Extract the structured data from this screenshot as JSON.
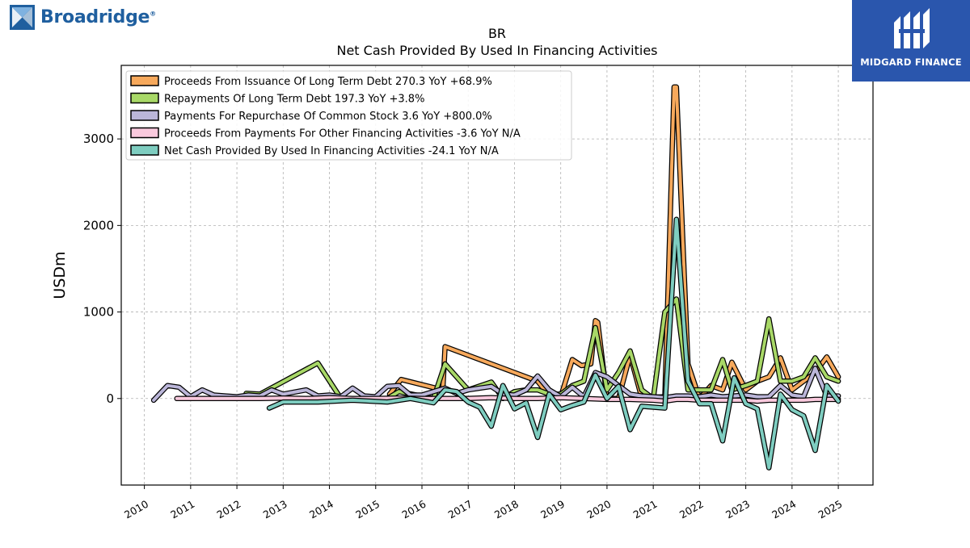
{
  "branding": {
    "left_logo_text": "Broadridge",
    "left_logo_reg": "®",
    "right_logo_text": "MIDGARD FINANCE",
    "left_logo_color": "#1f5f9f",
    "right_logo_bg": "#2a56ad"
  },
  "chart_data": {
    "type": "line",
    "title": "BR",
    "subtitle": "Net Cash Provided By Used In Financing Activities",
    "ylabel": "USDm",
    "xlabel": "",
    "xlim": [
      2009.5,
      2025.75
    ],
    "ylim": [
      -1000,
      3850
    ],
    "yticks": [
      0,
      1000,
      2000,
      3000
    ],
    "xticks": [
      "2010",
      "2011",
      "2012",
      "2013",
      "2014",
      "2015",
      "2016",
      "2017",
      "2018",
      "2019",
      "2020",
      "2021",
      "2022",
      "2023",
      "2024",
      "2025"
    ],
    "grid": true,
    "legend_position": "top-left",
    "series": [
      {
        "name": "Proceeds From Issuance Of Long Term Debt  270.3 YoY +68.9%",
        "color": "#f7a95c",
        "x": [
          2015.3,
          2015.55,
          2016.45,
          2016.5,
          2018.5,
          2018.75,
          2019.0,
          2019.25,
          2019.45,
          2019.65,
          2019.75,
          2019.8,
          2020.0,
          2020.25,
          2020.5,
          2020.75,
          2021.25,
          2021.45,
          2021.5,
          2021.75,
          2022.0,
          2022.25,
          2022.5,
          2022.7,
          2023.0,
          2023.25,
          2023.5,
          2023.75,
          2024.0,
          2024.25,
          2024.5,
          2024.75,
          2025.0
        ],
        "y": [
          50,
          220,
          100,
          600,
          200,
          30,
          20,
          450,
          380,
          400,
          900,
          880,
          0,
          0,
          500,
          10,
          20,
          3600,
          3600,
          400,
          0,
          150,
          100,
          420,
          100,
          200,
          250,
          470,
          100,
          200,
          300,
          480,
          250
        ]
      },
      {
        "name": "Repayments Of Long Term Debt  197.3 YoY +3.8%",
        "color": "#a8d867",
        "x": [
          2012.2,
          2012.5,
          2013.75,
          2014.25,
          2015.25,
          2015.5,
          2016.25,
          2016.5,
          2017.0,
          2017.5,
          2017.75,
          2018.0,
          2018.25,
          2018.5,
          2018.75,
          2019.0,
          2019.25,
          2019.5,
          2019.75,
          2020.0,
          2020.25,
          2020.5,
          2020.75,
          2021.0,
          2021.25,
          2021.5,
          2021.75,
          2022.0,
          2022.25,
          2022.5,
          2022.7,
          2023.0,
          2023.25,
          2023.5,
          2023.75,
          2024.0,
          2024.25,
          2024.5,
          2024.75,
          2025.0
        ],
        "y": [
          60,
          50,
          410,
          0,
          0,
          80,
          0,
          400,
          100,
          190,
          0,
          80,
          100,
          100,
          50,
          50,
          150,
          200,
          820,
          100,
          300,
          550,
          100,
          0,
          1000,
          1150,
          100,
          100,
          100,
          450,
          100,
          150,
          200,
          920,
          200,
          200,
          250,
          470,
          250,
          200
        ]
      },
      {
        "name": "Payments For Repurchase Of Common Stock  3.6 YoY +800.0%",
        "color": "#bbb6d9",
        "x": [
          2010.2,
          2010.5,
          2010.75,
          2011.0,
          2011.25,
          2011.5,
          2011.75,
          2012.0,
          2012.25,
          2012.5,
          2012.75,
          2013.0,
          2013.5,
          2013.75,
          2014.0,
          2014.25,
          2014.5,
          2014.75,
          2015.0,
          2015.25,
          2015.5,
          2015.75,
          2016.0,
          2016.25,
          2016.5,
          2016.75,
          2017.0,
          2017.25,
          2017.5,
          2017.75,
          2018.0,
          2018.25,
          2018.5,
          2018.75,
          2019.0,
          2019.25,
          2019.5,
          2019.75,
          2020.0,
          2020.25,
          2020.5,
          2020.75,
          2021.0,
          2021.25,
          2021.5,
          2021.75,
          2022.0,
          2022.25,
          2022.5,
          2022.75,
          2023.0,
          2023.25,
          2023.5,
          2023.75,
          2024.0,
          2024.25,
          2024.5,
          2024.75,
          2025.0
        ],
        "y": [
          -20,
          150,
          130,
          20,
          100,
          40,
          30,
          20,
          40,
          30,
          100,
          50,
          100,
          30,
          40,
          20,
          120,
          30,
          20,
          140,
          150,
          40,
          40,
          80,
          120,
          60,
          100,
          120,
          140,
          50,
          40,
          100,
          260,
          100,
          20,
          130,
          20,
          300,
          250,
          150,
          50,
          30,
          20,
          10,
          30,
          30,
          20,
          40,
          20,
          30,
          40,
          20,
          20,
          150,
          40,
          20,
          350,
          30,
          30
        ]
      },
      {
        "name": "Proceeds From Payments For Other Financing Activities  -3.6 YoY N/A",
        "color": "#f9c9dd",
        "x": [
          2010.7,
          2011.0,
          2011.5,
          2012.0,
          2012.5,
          2013.0,
          2013.5,
          2014.0,
          2014.5,
          2015.0,
          2015.5,
          2016.0,
          2016.5,
          2017.0,
          2017.5,
          2018.0,
          2018.5,
          2019.0,
          2019.5,
          2020.0,
          2020.5,
          2021.0,
          2021.25,
          2021.5,
          2021.75,
          2022.0,
          2022.25,
          2022.5,
          2022.75,
          2023.0,
          2023.25,
          2023.5,
          2023.75,
          2024.0,
          2024.25,
          2024.5,
          2024.75,
          2025.0
        ],
        "y": [
          0,
          0,
          0,
          0,
          0,
          5,
          0,
          10,
          0,
          0,
          5,
          0,
          0,
          0,
          10,
          0,
          0,
          10,
          0,
          -10,
          -10,
          -20,
          -30,
          -10,
          -10,
          -20,
          -20,
          -20,
          -20,
          -20,
          -30,
          -20,
          -20,
          -20,
          -20,
          -10,
          -10,
          -10
        ]
      },
      {
        "name": "Net Cash Provided By Used In Financing Activities  -24.1 YoY N/A",
        "color": "#7ecdc0",
        "x": [
          2012.7,
          2013.0,
          2013.75,
          2014.5,
          2015.25,
          2015.75,
          2016.25,
          2016.5,
          2016.75,
          2017.0,
          2017.25,
          2017.5,
          2017.75,
          2018.0,
          2018.25,
          2018.5,
          2018.75,
          2019.0,
          2019.25,
          2019.5,
          2019.75,
          2020.0,
          2020.25,
          2020.5,
          2020.75,
          2021.0,
          2021.25,
          2021.5,
          2021.75,
          2022.0,
          2022.25,
          2022.5,
          2022.75,
          2023.0,
          2023.25,
          2023.5,
          2023.75,
          2024.0,
          2024.25,
          2024.5,
          2024.75,
          2025.0
        ],
        "y": [
          -110,
          -40,
          -40,
          -20,
          -40,
          0,
          -50,
          100,
          80,
          -40,
          -100,
          -320,
          150,
          -120,
          -50,
          -450,
          50,
          -130,
          -80,
          -40,
          270,
          0,
          140,
          -360,
          -90,
          -100,
          -110,
          2070,
          200,
          -60,
          -60,
          -490,
          240,
          -60,
          -120,
          -800,
          50,
          -130,
          -200,
          -600,
          150,
          -30
        ]
      }
    ]
  }
}
